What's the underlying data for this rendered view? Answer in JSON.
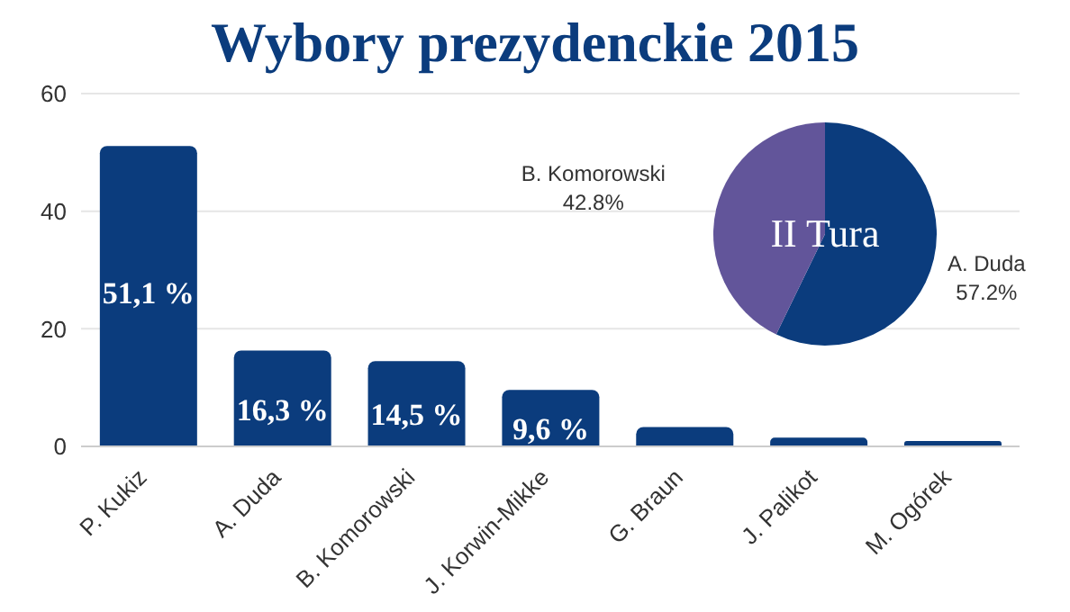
{
  "chart_data": [
    {
      "type": "bar",
      "title": "Wybory prezydenckie 2015",
      "categories": [
        "P. Kukiz",
        "A. Duda",
        "B. Komorowski",
        "J. Korwin-Mikke",
        "G. Braun",
        "J. Palikot",
        "M. Ogórek"
      ],
      "values": [
        51.1,
        16.3,
        14.5,
        9.6,
        3.3,
        1.5,
        0.9
      ],
      "color": "#0b3c7d",
      "value_labels": [
        "51,1 %",
        "16,3 %",
        "14,5 %",
        "9,6 %",
        null,
        null,
        null
      ],
      "ylim": [
        0,
        60
      ],
      "yticks": [
        0,
        20,
        40,
        60
      ],
      "grid": "y"
    },
    {
      "type": "pie",
      "title": "II Tura",
      "categories": [
        "A. Duda",
        "B. Komorowski"
      ],
      "values": [
        57.2,
        42.8
      ],
      "colors": [
        "#0b3c7d",
        "#62559a"
      ],
      "value_labels": [
        "57.2%",
        "42.8%"
      ]
    }
  ]
}
